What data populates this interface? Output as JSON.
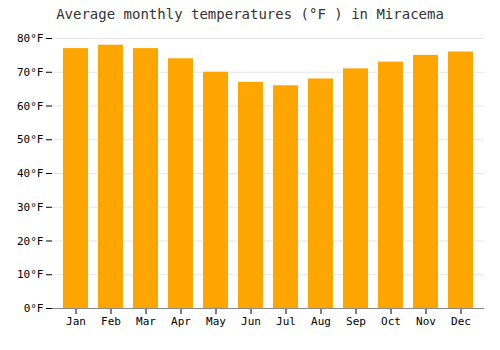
{
  "chart_data": {
    "type": "bar",
    "title": "Average monthly temperatures (°F ) in Miracema",
    "categories": [
      "Jan",
      "Feb",
      "Mar",
      "Apr",
      "May",
      "Jun",
      "Jul",
      "Aug",
      "Sep",
      "Oct",
      "Nov",
      "Dec"
    ],
    "values": [
      77.0,
      78.0,
      77.0,
      74.0,
      70.0,
      67.0,
      66.0,
      68.0,
      71.0,
      73.0,
      75.0,
      76.0
    ],
    "color": "#FFA500",
    "ylim": [
      0,
      80
    ],
    "yticks": [
      {
        "value": 0,
        "label": "0°F"
      },
      {
        "value": 10,
        "label": "10°F"
      },
      {
        "value": 20,
        "label": "20°F"
      },
      {
        "value": 30,
        "label": "30°F"
      },
      {
        "value": 40,
        "label": "40°F"
      },
      {
        "value": 50,
        "label": "50°F"
      },
      {
        "value": 60,
        "label": "60°F"
      },
      {
        "value": 70,
        "label": "70°F"
      },
      {
        "value": 80,
        "label": "80°F"
      }
    ],
    "grid": true
  }
}
